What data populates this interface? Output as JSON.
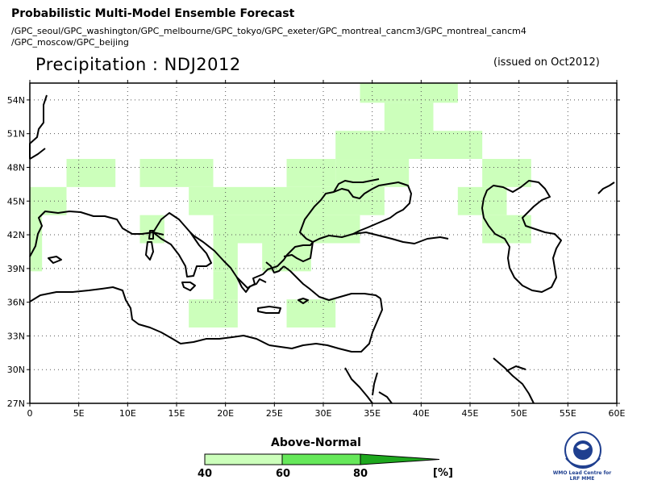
{
  "header": {
    "title": "Probabilistic Multi-Model Ensemble Forecast",
    "models_line1": "/GPC_seoul/GPC_washington/GPC_melbourne/GPC_tokyo/GPC_exeter/GPC_montreal_cancm3/GPC_montreal_cancm4",
    "models_line2": "/GPC_moscow/GPC_beijing",
    "subtitle": "Precipitation : NDJ2012",
    "issued": "(issued on Oct2012)"
  },
  "map": {
    "lat_labels": [
      "54N",
      "51N",
      "48N",
      "45N",
      "42N",
      "39N",
      "36N",
      "33N",
      "30N",
      "27N"
    ],
    "lon_labels": [
      "0",
      "5E",
      "10E",
      "15E",
      "20E",
      "25E",
      "30E",
      "35E",
      "40E",
      "45E",
      "50E",
      "55E",
      "60E"
    ],
    "lat_values": [
      54,
      51,
      48,
      45,
      42,
      39,
      36,
      33,
      30,
      27
    ],
    "lon_values": [
      0,
      5,
      10,
      15,
      20,
      25,
      30,
      35,
      40,
      45,
      50,
      55,
      60
    ],
    "lat_range": [
      27,
      55.5
    ],
    "lon_range": [
      0,
      60
    ],
    "grid_step_deg": 2.5,
    "colors": {
      "light_green": "#ccffbb",
      "medium_green": "#66e85a",
      "dark_green": "#1ea81e",
      "coast": "#000000"
    },
    "above_normal_40_60": [
      {
        "lon": [
          33.75,
          43.75
        ],
        "lat": [
          53.75,
          55.5
        ]
      },
      {
        "lon": [
          36.25,
          41.25
        ],
        "lat": [
          51.25,
          53.75
        ]
      },
      {
        "lon": [
          31.25,
          46.25
        ],
        "lat": [
          48.75,
          51.25
        ]
      },
      {
        "lon": [
          31.25,
          38.75
        ],
        "lat": [
          46.25,
          48.75
        ]
      },
      {
        "lon": [
          3.75,
          8.75
        ],
        "lat": [
          46.25,
          48.75
        ]
      },
      {
        "lon": [
          11.25,
          18.75
        ],
        "lat": [
          46.25,
          48.75
        ]
      },
      {
        "lon": [
          26.25,
          31.25
        ],
        "lat": [
          46.25,
          48.75
        ]
      },
      {
        "lon": [
          46.25,
          51.25
        ],
        "lat": [
          46.25,
          48.75
        ]
      },
      {
        "lon": [
          0,
          3.75
        ],
        "lat": [
          43.75,
          46.25
        ]
      },
      {
        "lon": [
          16.25,
          36.25
        ],
        "lat": [
          43.75,
          46.25
        ]
      },
      {
        "lon": [
          43.75,
          48.75
        ],
        "lat": [
          43.75,
          46.25
        ]
      },
      {
        "lon": [
          0,
          1.25
        ],
        "lat": [
          41.25,
          43.75
        ]
      },
      {
        "lon": [
          11.25,
          13.75
        ],
        "lat": [
          41.25,
          43.75
        ]
      },
      {
        "lon": [
          18.75,
          33.75
        ],
        "lat": [
          41.25,
          43.75
        ]
      },
      {
        "lon": [
          46.25,
          51.25
        ],
        "lat": [
          41.25,
          43.75
        ]
      },
      {
        "lon": [
          0,
          1.25
        ],
        "lat": [
          38.75,
          41.25
        ]
      },
      {
        "lon": [
          18.75,
          21.25
        ],
        "lat": [
          38.75,
          41.25
        ]
      },
      {
        "lon": [
          23.75,
          28.75
        ],
        "lat": [
          38.75,
          41.25
        ]
      },
      {
        "lon": [
          18.75,
          21.25
        ],
        "lat": [
          36.25,
          38.75
        ]
      },
      {
        "lon": [
          16.25,
          21.25
        ],
        "lat": [
          33.75,
          36.25
        ]
      },
      {
        "lon": [
          26.25,
          31.25
        ],
        "lat": [
          33.75,
          36.25
        ]
      }
    ]
  },
  "legend": {
    "title": "Above-Normal",
    "labels": [
      "40",
      "60",
      "80"
    ],
    "unit": "[%]"
  },
  "logo": {
    "text_line1": "WMO Lead Centre for",
    "text_line2": "LRF MME"
  }
}
